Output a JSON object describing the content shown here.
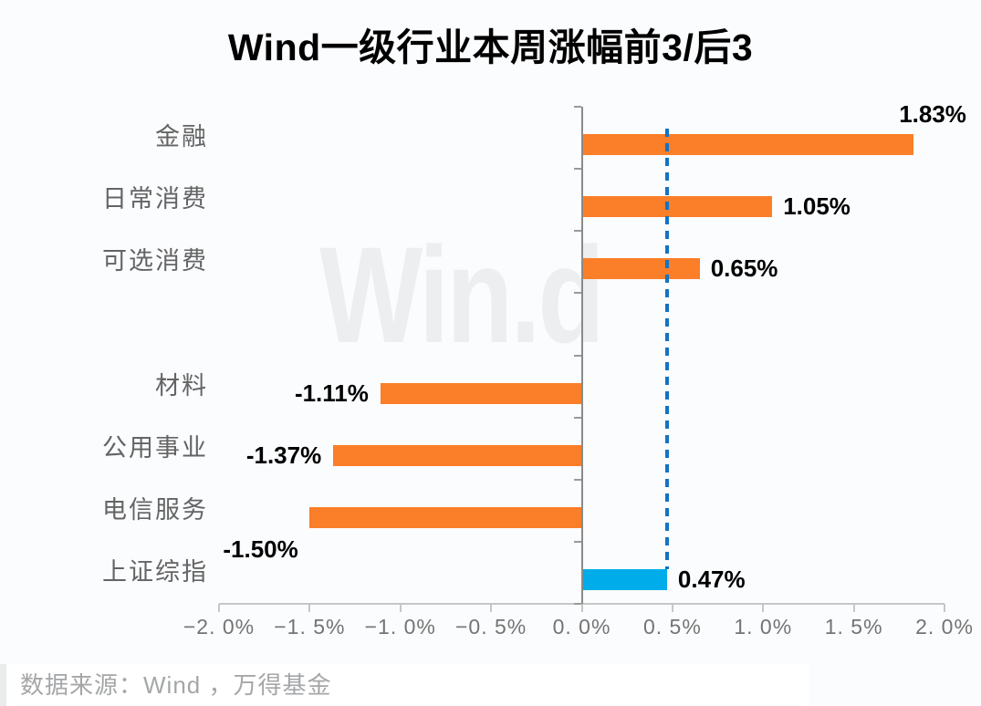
{
  "title": "Wind一级行业本周涨幅前3/后3",
  "watermark": "Win.d",
  "footer": {
    "source_label": "数据来源：Wind ，万得基金"
  },
  "colors": {
    "page_bg": "#fbfcfe",
    "title_text": "#000000",
    "bar_orange": "#fb7e28",
    "bar_blue": "#00ace9",
    "reference_line": "#1373c4",
    "zero_line": "#8a8a8a",
    "axis_line": "#c6c6c6",
    "category_text": "#646464",
    "tick_text": "#747474",
    "value_text": "#000000",
    "watermark_text": "#edeef0",
    "footer_bg": "#ffffff",
    "footer_accent": "#e9ebed",
    "footer_text": "#a4a6a8"
  },
  "chart_data": {
    "type": "bar",
    "orientation": "horizontal",
    "title": "Wind一级行业本周涨幅前3/后3",
    "xlabel": "",
    "ylabel": "",
    "xlim": [
      -2.0,
      2.0
    ],
    "x_tick_step": 0.5,
    "x_tick_labels": [
      "−2. 0%",
      "−1. 5%",
      "−1. 0%",
      "−0. 5%",
      "0. 0%",
      "0. 5%",
      "1. 0%",
      "1. 5%",
      "2. 0%"
    ],
    "grid": false,
    "legend": "none",
    "categories": [
      "金融",
      "日常消费",
      "可选消费",
      "",
      "材料",
      "公用事业",
      "电信服务",
      "上证综指"
    ],
    "series": [
      {
        "name": "本周涨幅",
        "values": [
          1.83,
          1.05,
          0.65,
          null,
          -1.11,
          -1.37,
          -1.5,
          0.47
        ]
      }
    ],
    "rows": [
      {
        "category": "金融",
        "value": 1.83,
        "label": "1.83%",
        "color": "orange",
        "label_pos": "above"
      },
      {
        "category": "日常消费",
        "value": 1.05,
        "label": "1.05%",
        "color": "orange",
        "label_pos": "side"
      },
      {
        "category": "可选消费",
        "value": 0.65,
        "label": "0.65%",
        "color": "orange",
        "label_pos": "side"
      },
      {
        "category": "",
        "value": null,
        "label": "",
        "color": null,
        "label_pos": null
      },
      {
        "category": "材料",
        "value": -1.11,
        "label": "-1.11%",
        "color": "orange",
        "label_pos": "side"
      },
      {
        "category": "公用事业",
        "value": -1.37,
        "label": "-1.37%",
        "color": "orange",
        "label_pos": "side"
      },
      {
        "category": "电信服务",
        "value": -1.5,
        "label": "-1.50%",
        "color": "orange",
        "label_pos": "below"
      },
      {
        "category": "上证综指",
        "value": 0.47,
        "label": "0.47%",
        "color": "blue",
        "label_pos": "side"
      }
    ],
    "reference_line": {
      "value": 0.47,
      "style": "dashed",
      "color": "#1373c4"
    }
  }
}
